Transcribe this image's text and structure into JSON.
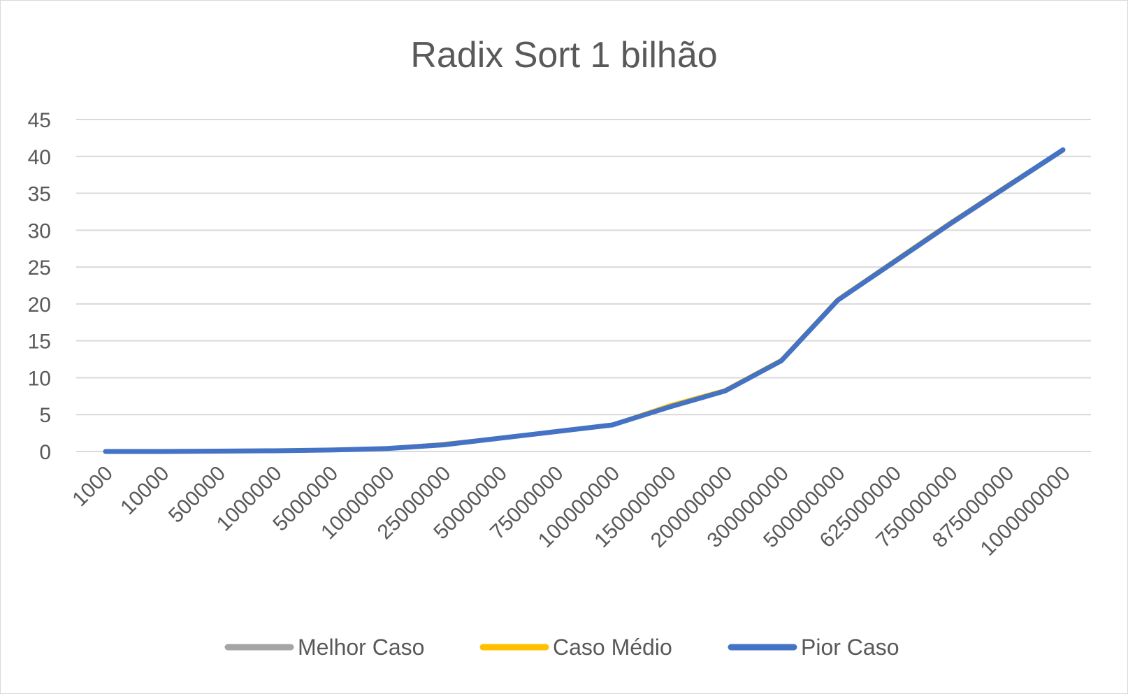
{
  "chart_data": {
    "type": "line",
    "title": "Radix Sort 1 bilhão",
    "xlabel": "",
    "ylabel": "",
    "ylim": [
      0,
      45
    ],
    "yticks": [
      "0",
      "5",
      "10",
      "15",
      "20",
      "25",
      "30",
      "35",
      "40",
      "45"
    ],
    "grid": true,
    "legend_position": "bottom",
    "categories": [
      "1000",
      "10000",
      "500000",
      "1000000",
      "5000000",
      "10000000",
      "25000000",
      "50000000",
      "75000000",
      "100000000",
      "150000000",
      "200000000",
      "300000000",
      "500000000",
      "625000000",
      "750000000",
      "875000000",
      "1000000000"
    ],
    "series": [
      {
        "name": "Melhor Caso",
        "color": "#a5a5a5",
        "values": [
          0,
          0,
          0.05,
          0.1,
          0.2,
          0.4,
          1.0,
          1.8,
          2.7,
          3.6,
          6.1,
          8.2,
          12.3,
          20.5,
          25.6,
          30.8,
          35.8,
          40.8
        ]
      },
      {
        "name": "Caso Médio",
        "color": "#ffc000",
        "values": [
          0,
          0,
          0.05,
          0.1,
          0.2,
          0.4,
          1.0,
          1.8,
          2.7,
          3.6,
          6.2,
          8.3,
          12.4,
          20.6,
          25.8,
          31.0,
          36.0,
          40.9
        ]
      },
      {
        "name": "Pior Caso",
        "color": "#4472c4",
        "values": [
          0,
          0,
          0.05,
          0.1,
          0.2,
          0.4,
          0.9,
          1.8,
          2.7,
          3.6,
          6.0,
          8.2,
          12.3,
          20.5,
          25.7,
          30.9,
          35.9,
          40.9
        ]
      }
    ]
  }
}
